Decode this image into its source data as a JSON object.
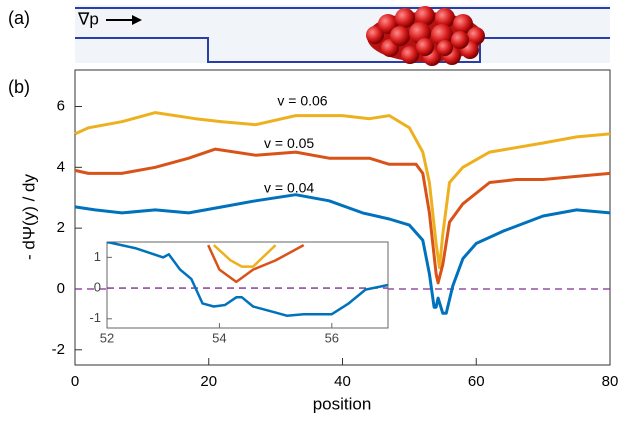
{
  "panel_labels": [
    "(a)",
    "(b)"
  ],
  "schematic_label": "∇p",
  "chart_data": [
    {
      "type": "line",
      "xlabel": "position",
      "ylabel": "- dΨ(y) / dy",
      "xlim": [
        0,
        80
      ],
      "ylim": [
        -2.5,
        7.2
      ],
      "xticks": [
        0,
        20,
        40,
        60,
        80
      ],
      "yticks": [
        -2,
        0,
        2,
        4,
        6
      ],
      "reference_line": 0,
      "reference_color": "#7e2f8e",
      "series": [
        {
          "name": "v = 0.06",
          "color": "#edb120",
          "x": [
            0,
            2,
            7,
            12,
            18,
            22,
            27,
            33,
            40,
            44,
            47,
            50,
            52,
            53,
            54,
            54.5,
            55,
            56,
            58,
            62,
            70,
            75,
            80
          ],
          "values": [
            5.1,
            5.3,
            5.5,
            5.8,
            5.6,
            5.5,
            5.4,
            5.7,
            5.7,
            5.6,
            5.7,
            5.3,
            4.5,
            3.5,
            1.5,
            0.7,
            1.8,
            3.5,
            4.0,
            4.5,
            4.8,
            5.0,
            5.1
          ]
        },
        {
          "name": "v = 0.05",
          "color": "#d95319",
          "x": [
            0,
            2,
            7,
            12,
            17,
            21,
            27,
            33,
            38,
            44,
            47,
            51,
            52,
            53,
            54,
            54.3,
            55,
            56,
            58,
            62,
            66,
            70,
            75,
            80
          ],
          "values": [
            3.9,
            3.8,
            3.8,
            4.0,
            4.3,
            4.6,
            4.4,
            4.5,
            4.3,
            4.3,
            4.1,
            4.1,
            3.8,
            2.5,
            0.5,
            0.2,
            0.8,
            2.2,
            2.8,
            3.5,
            3.6,
            3.6,
            3.7,
            3.8
          ]
        },
        {
          "name": "v = 0.04",
          "color": "#0072bd",
          "x": [
            0,
            3,
            7,
            12,
            17,
            22,
            27,
            33,
            38,
            43,
            47,
            50,
            52,
            53,
            53.7,
            54,
            54.3,
            55,
            55.5,
            56.5,
            58,
            60,
            64,
            70,
            75,
            80
          ],
          "values": [
            2.7,
            2.6,
            2.5,
            2.6,
            2.5,
            2.7,
            2.9,
            3.1,
            2.9,
            2.5,
            2.3,
            2.1,
            1.6,
            0.5,
            -0.6,
            -0.6,
            -0.3,
            -0.8,
            -0.8,
            0.1,
            1.0,
            1.5,
            1.9,
            2.4,
            2.6,
            2.5
          ]
        }
      ]
    },
    {
      "type": "line",
      "xlim": [
        52,
        57
      ],
      "ylim": [
        -1.3,
        1.5
      ],
      "xticks": [
        52,
        54,
        56
      ],
      "yticks": [
        -1,
        0,
        1
      ],
      "reference_line": 0,
      "reference_color": "#7e2f8e",
      "series": [
        {
          "color": "#edb120",
          "x": [
            53.9,
            54.2,
            54.4,
            54.6,
            55
          ],
          "values": [
            1.4,
            0.9,
            0.7,
            0.7,
            1.4
          ]
        },
        {
          "color": "#d95319",
          "x": [
            53.8,
            54,
            54.3,
            54.6,
            55,
            55.5
          ],
          "values": [
            1.4,
            0.6,
            0.2,
            0.6,
            0.9,
            1.4
          ]
        },
        {
          "color": "#0072bd",
          "x": [
            52,
            52.5,
            53,
            53.1,
            53.3,
            53.5,
            53.7,
            53.9,
            54.1,
            54.3,
            54.4,
            54.6,
            55,
            55.2,
            55.5,
            56,
            56.3,
            56.6,
            57
          ],
          "values": [
            1.5,
            1.3,
            1.0,
            1.1,
            0.6,
            0.3,
            -0.5,
            -0.6,
            -0.55,
            -0.3,
            -0.3,
            -0.6,
            -0.8,
            -0.9,
            -0.85,
            -0.85,
            -0.5,
            -0.05,
            0.1
          ]
        }
      ]
    }
  ]
}
